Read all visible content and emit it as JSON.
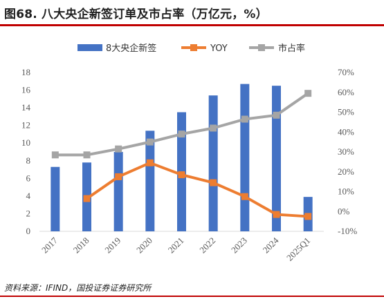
{
  "header": {
    "title": "图68. 八大央企新签订单及市占率（万亿元，%）"
  },
  "source": "资料来源：IFIND，国投证券证券研究所",
  "colors": {
    "bar": "#4472c4",
    "yoy": "#ed7d31",
    "share": "#a5a5a5",
    "rule": "#c00000"
  },
  "chart_data": {
    "type": "bar",
    "title": "",
    "categories": [
      "2017",
      "2018",
      "2019",
      "2020",
      "2021",
      "2022",
      "2023",
      "2024",
      "2025Q1"
    ],
    "series": [
      {
        "name": "8大央企新签",
        "type": "bar",
        "axis": "left",
        "values": [
          7.3,
          7.8,
          9.0,
          11.4,
          13.5,
          15.4,
          16.7,
          16.5,
          3.9
        ]
      },
      {
        "name": "YOY",
        "type": "line",
        "axis": "right",
        "values": [
          null,
          6.5,
          17.5,
          24.5,
          18.5,
          14.5,
          7.5,
          -1.5,
          -2.5
        ]
      },
      {
        "name": "市占率",
        "type": "line",
        "axis": "right",
        "values": [
          28.5,
          28.5,
          31.5,
          35.0,
          39.0,
          42.0,
          46.5,
          48.5,
          59.5
        ]
      }
    ],
    "y_left": {
      "min": 0,
      "max": 18,
      "ticks": [
        "0",
        "2",
        "4",
        "6",
        "8",
        "10",
        "12",
        "14",
        "16",
        "18"
      ]
    },
    "y_right": {
      "min": -10,
      "max": 70,
      "ticks": [
        "-10%",
        "0%",
        "10%",
        "20%",
        "30%",
        "40%",
        "50%",
        "60%",
        "70%"
      ]
    },
    "legend": {
      "position": "top",
      "items": [
        "8大央企新签",
        "YOY",
        "市占率"
      ]
    },
    "grid": false
  }
}
